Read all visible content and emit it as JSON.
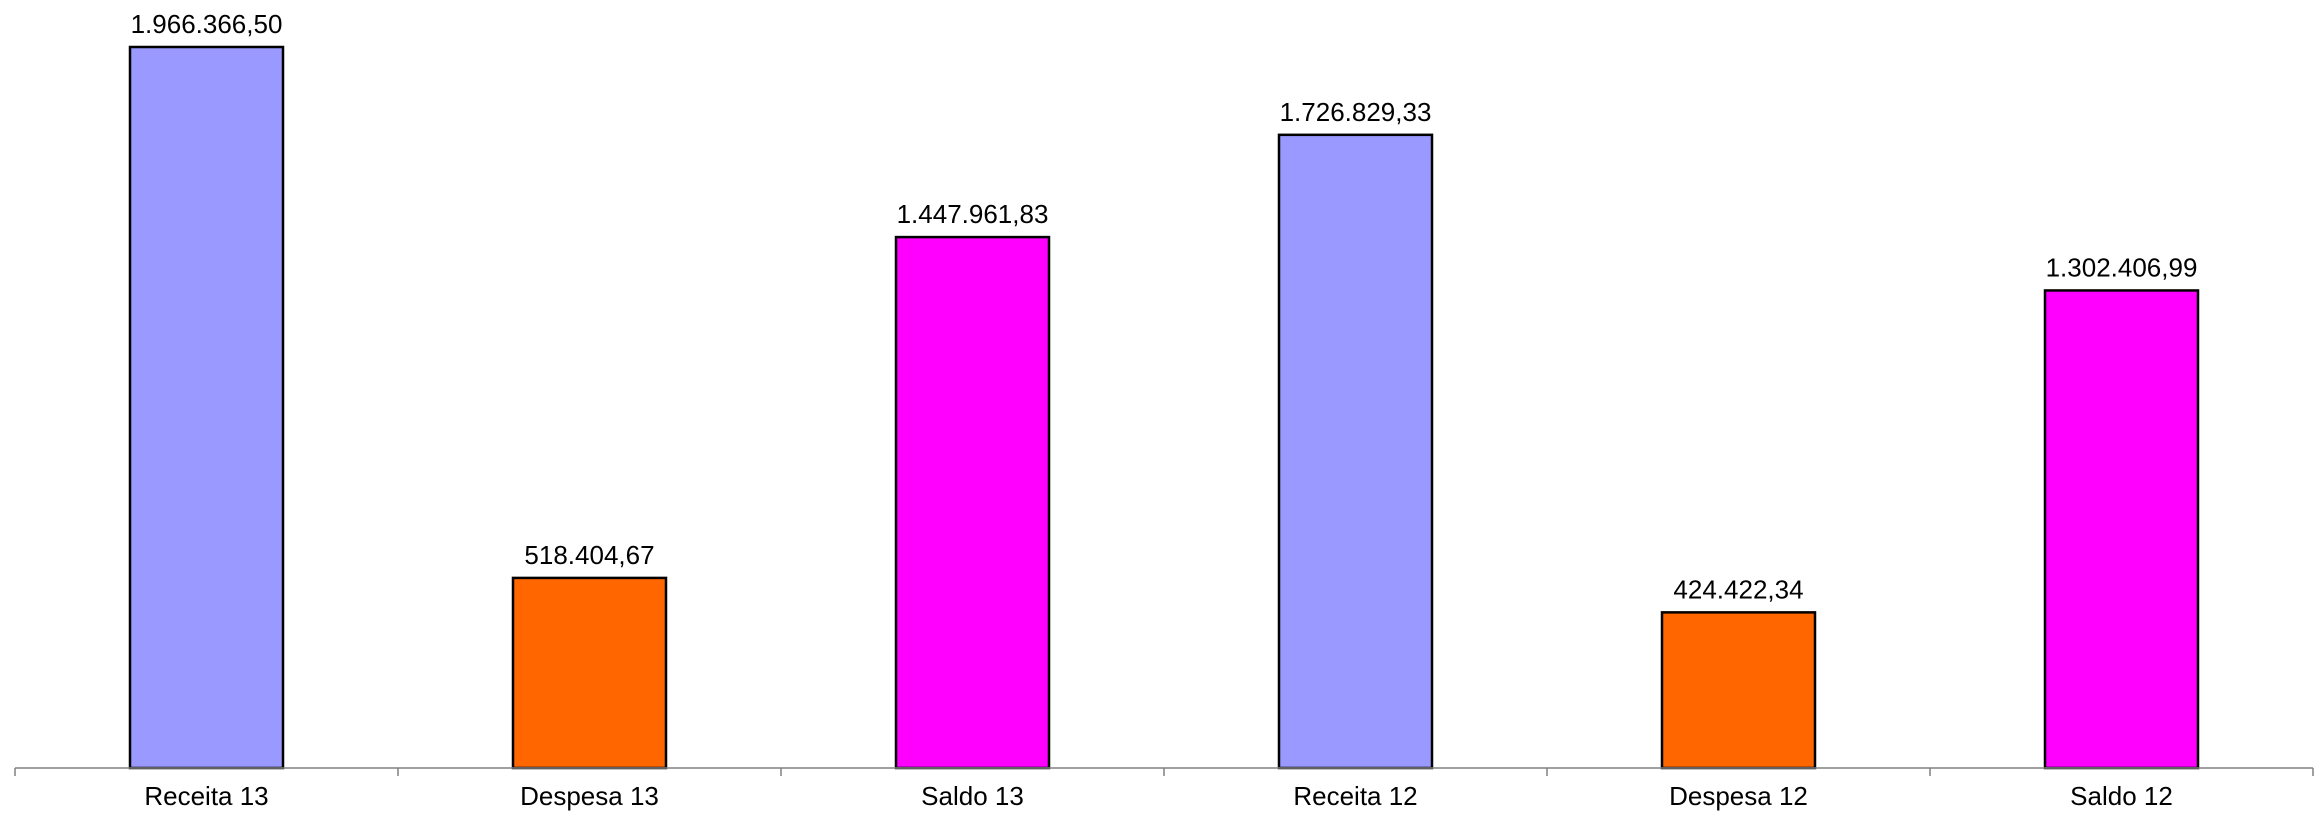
{
  "chart_data": {
    "type": "bar",
    "title": "",
    "xlabel": "",
    "ylabel": "",
    "categories": [
      "Receita 13",
      "Despesa 13",
      "Saldo 13",
      "Receita 12",
      "Despesa 12",
      "Saldo 12"
    ],
    "values": [
      1966366.5,
      518404.67,
      1447961.83,
      1726829.33,
      424422.34,
      1302406.99
    ],
    "value_labels": [
      "1.966.366,50",
      "518.404,67",
      "1.447.961,83",
      "1.726.829,33",
      "424.422,34",
      "1.302.406,99"
    ],
    "bar_colors": [
      "#9999ff",
      "#ff6600",
      "#ff00ff",
      "#9999ff",
      "#ff6600",
      "#ff00ff"
    ],
    "ylim": [
      0,
      1966366.5
    ],
    "grid": false,
    "legend": "none",
    "colors": {
      "bar_outline": "#000000",
      "axis": "#808080"
    }
  }
}
